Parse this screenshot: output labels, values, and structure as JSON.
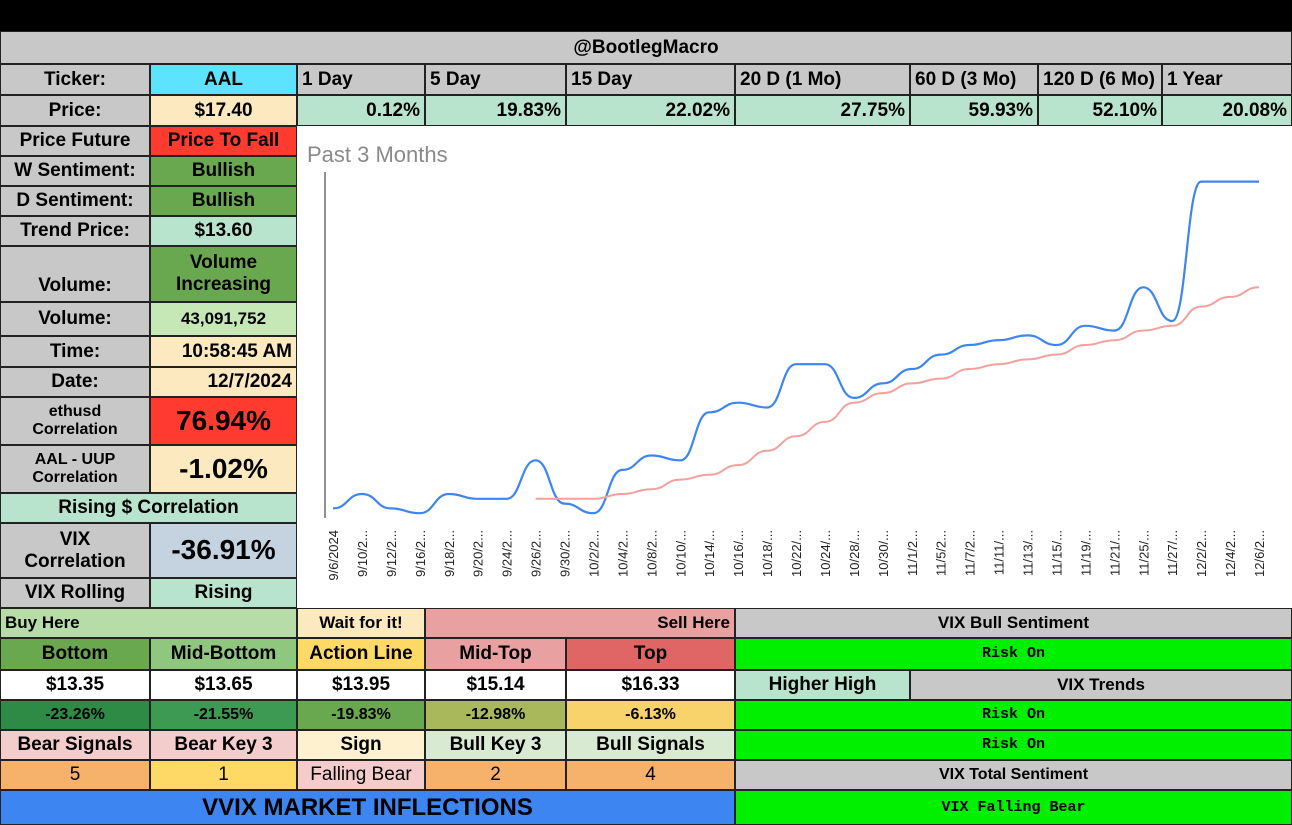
{
  "header": {
    "title": "@BootlegMacro"
  },
  "colors": {
    "cyan": "#5ee3ff",
    "gray": "#c8c8c8",
    "cream": "#fde9c0",
    "mint": "#b8e3cd",
    "green_dark": "#6aa84f",
    "red": "#ff3b30",
    "bright_green": "#00f000",
    "blue": "#3d85f0"
  },
  "info": {
    "ticker_label": "Ticker:",
    "ticker_value": "AAL",
    "price_label": "Price:",
    "price_value": "$17.40",
    "price_future_label": "Price Future",
    "price_future_value": "Price To Fall",
    "w_sentiment_label": "W Sentiment:",
    "w_sentiment_value": "Bullish",
    "d_sentiment_label": "D Sentiment:",
    "d_sentiment_value": "Bullish",
    "trend_price_label": "Trend Price:",
    "trend_price_value": "$13.60",
    "volume_label": "Volume:",
    "volume_status_1": "Volume",
    "volume_status_2": "Increasing",
    "volume2_label": "Volume:",
    "volume_value": "43,091,752",
    "time_label": "Time:",
    "time_value": "10:58:45 AM",
    "date_label": "Date:",
    "date_value": "12/7/2024",
    "ethusd_label_1": "ethusd",
    "ethusd_label_2": "Correlation",
    "ethusd_value": "76.94%",
    "uup_label_1": "AAL - UUP",
    "uup_label_2": "Correlation",
    "uup_value": "-1.02%",
    "rising_corr_label": "Rising $ Correlation",
    "vix_corr_label_1": "VIX",
    "vix_corr_label_2": "Correlation",
    "vix_corr_value": "-36.91%",
    "vix_rolling_label": "VIX Rolling",
    "vix_rolling_value": "Rising"
  },
  "periods": [
    {
      "label": "1 Day",
      "value": "0.12%"
    },
    {
      "label": "5 Day",
      "value": "19.83%"
    },
    {
      "label": "15 Day",
      "value": "22.02%"
    },
    {
      "label": "20 D (1 Mo)",
      "value": "27.75%"
    },
    {
      "label": "60 D (3 Mo)",
      "value": "59.93%"
    },
    {
      "label": "120 D (6 Mo)",
      "value": "52.10%"
    },
    {
      "label": "1 Year",
      "value": "20.08%"
    }
  ],
  "levels": {
    "buy_here": "Buy Here",
    "wait": "Wait for it!",
    "sell_here": "Sell Here",
    "names": [
      "Bottom",
      "Mid-Bottom",
      "Action Line",
      "Mid-Top",
      "Top"
    ],
    "prices": [
      "$13.35",
      "$13.65",
      "$13.95",
      "$15.14",
      "$16.33"
    ],
    "pcts": [
      "-23.26%",
      "-21.55%",
      "-19.83%",
      "-12.98%",
      "-6.13%"
    ]
  },
  "signals": {
    "labels": [
      "Bear Signals",
      "Bear Key 3",
      "Sign",
      "Bull Key 3",
      "Bull Signals"
    ],
    "values": [
      "5",
      "1",
      "Falling Bear",
      "2",
      "4"
    ]
  },
  "vvix_banner": "VVIX MARKET INFLECTIONS",
  "vix": {
    "bull_sentiment_label": "VIX Bull Sentiment",
    "bull_sentiment_value": "Risk On",
    "higher_high": "Higher High",
    "trends_label": "VIX Trends",
    "trend_value_1": "Risk On",
    "trend_value_2": "Risk On",
    "total_label": "VIX Total Sentiment",
    "total_value": "VIX Falling Bear"
  },
  "chart_data": {
    "type": "line",
    "title": "Past 3 Months",
    "x": [
      "9/6/2024",
      "9/10/2...",
      "9/12/2...",
      "9/16/2...",
      "9/18/2...",
      "9/20/2...",
      "9/24/2...",
      "9/26/2...",
      "9/30/2...",
      "10/2/2...",
      "10/4/2...",
      "10/8/2...",
      "10/10/...",
      "10/14/...",
      "10/16/...",
      "10/18/...",
      "10/22/...",
      "10/24/...",
      "10/28/...",
      "10/30/...",
      "11/1/2...",
      "11/5/2...",
      "11/7/2...",
      "11/11/...",
      "11/13/...",
      "11/15/...",
      "11/19/...",
      "11/21/...",
      "11/25/...",
      "11/27/...",
      "12/2/2...",
      "12/4/2...",
      "12/6/2..."
    ],
    "series": [
      {
        "color": "#3d85f0",
        "values": [
          10.6,
          10.9,
          10.6,
          10.5,
          10.9,
          10.8,
          10.8,
          11.6,
          10.7,
          10.5,
          11.4,
          11.7,
          11.6,
          12.6,
          12.8,
          12.7,
          13.6,
          13.6,
          12.9,
          13.2,
          13.5,
          13.8,
          14.0,
          14.1,
          14.2,
          14.0,
          14.4,
          14.3,
          15.2,
          14.5,
          17.4,
          17.4,
          17.4
        ]
      },
      {
        "color": "#f4a09c",
        "values": [
          null,
          null,
          null,
          null,
          null,
          null,
          null,
          10.8,
          10.8,
          10.8,
          10.9,
          11.0,
          11.2,
          11.3,
          11.5,
          11.8,
          12.1,
          12.4,
          12.8,
          13.0,
          13.2,
          13.3,
          13.5,
          13.6,
          13.7,
          13.8,
          14.0,
          14.1,
          14.3,
          14.4,
          14.8,
          15.0,
          15.2
        ]
      }
    ]
  }
}
